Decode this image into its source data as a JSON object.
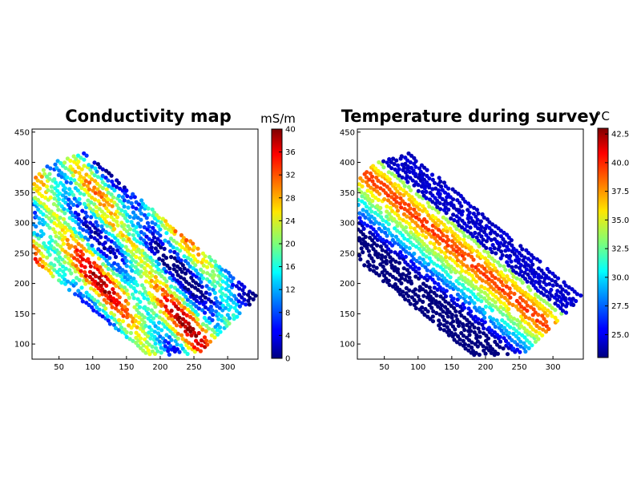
{
  "chart_data": [
    {
      "type": "scatter",
      "title": "Conductivity map",
      "xlabel": "",
      "ylabel": "",
      "xlim": [
        10,
        345
      ],
      "ylim": [
        75,
        455
      ],
      "x_ticks": [
        "50",
        "100",
        "150",
        "200",
        "250",
        "300"
      ],
      "y_ticks": [
        "100",
        "150",
        "200",
        "250",
        "300",
        "350",
        "400",
        "450"
      ],
      "colorbar": {
        "unit": "mS/m",
        "range": [
          0,
          40
        ],
        "ticks": [
          "0",
          "4",
          "8",
          "12",
          "16",
          "20",
          "24",
          "28",
          "32",
          "36",
          "40"
        ]
      },
      "grid": false
    },
    {
      "type": "scatter",
      "title": "Temperature during survey",
      "xlabel": "",
      "ylabel": "",
      "xlim": [
        10,
        345
      ],
      "ylim": [
        75,
        455
      ],
      "x_ticks": [
        "50",
        "100",
        "150",
        "200",
        "250",
        "300"
      ],
      "y_ticks": [
        "100",
        "150",
        "200",
        "250",
        "300",
        "350",
        "400",
        "450"
      ],
      "colorbar": {
        "unit": "°C",
        "range": [
          23,
          43
        ],
        "ticks": [
          "25.0",
          "27.5",
          "30.0",
          "32.5",
          "35.0",
          "37.5",
          "40.0",
          "42.5"
        ]
      },
      "grid": false
    }
  ]
}
